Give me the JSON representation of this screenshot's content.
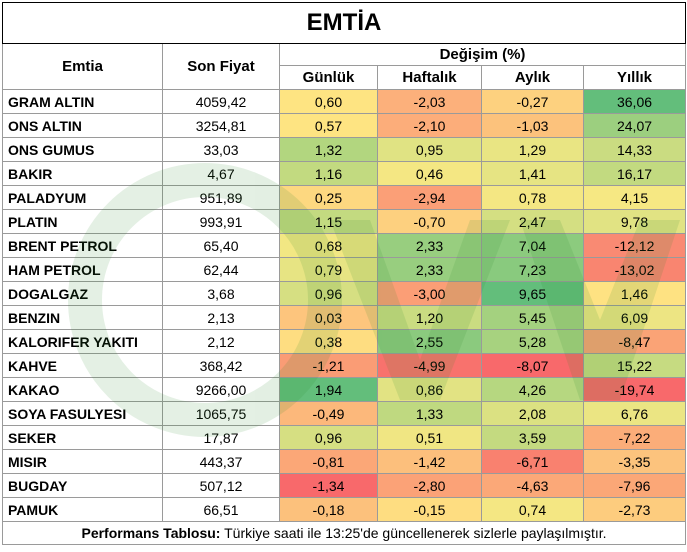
{
  "title": "EMTİA",
  "headers": {
    "commodity": "Emtia",
    "price": "Son Fiyat",
    "change_group": "Değişim (%)",
    "daily": "Günlük",
    "weekly": "Haftalık",
    "monthly": "Aylık",
    "yearly": "Yıllık"
  },
  "rows": [
    {
      "name": "GRAM ALTIN",
      "price": "4059,42",
      "changes": [
        "0,60",
        "-2,03",
        "-0,27",
        "36,06"
      ],
      "colors": [
        "#fee482",
        "#fcb07b",
        "#fdd17f",
        "#63be7b"
      ]
    },
    {
      "name": "ONS ALTIN",
      "price": "3254,81",
      "changes": [
        "0,57",
        "-2,10",
        "-1,03",
        "24,07"
      ],
      "colors": [
        "#fee482",
        "#fcad7a",
        "#fcc27c",
        "#9ccf7f"
      ]
    },
    {
      "name": "ONS GUMUS",
      "price": "33,03",
      "changes": [
        "1,32",
        "0,95",
        "1,29",
        "14,33"
      ],
      "colors": [
        "#b2d67f",
        "#e0e383",
        "#e9e583",
        "#cadc81"
      ]
    },
    {
      "name": "BAKIR",
      "price": "4,67",
      "changes": [
        "1,16",
        "0,46",
        "1,41",
        "16,17"
      ],
      "colors": [
        "#c2da80",
        "#f4e783",
        "#e6e483",
        "#c2da80"
      ]
    },
    {
      "name": "PALADYUM",
      "price": "951,89",
      "changes": [
        "0,25",
        "-2,94",
        "0,78",
        "4,15"
      ],
      "colors": [
        "#fdd880",
        "#fb9f77",
        "#f4e783",
        "#f6e883"
      ]
    },
    {
      "name": "PLATIN",
      "price": "993,91",
      "changes": [
        "1,15",
        "-0,70",
        "2,47",
        "9,78"
      ],
      "colors": [
        "#c3da80",
        "#fdd07f",
        "#d4df82",
        "#e1e383"
      ]
    },
    {
      "name": "BRENT PETROL",
      "price": "65,40",
      "changes": [
        "0,68",
        "2,33",
        "7,04",
        "-12,12"
      ],
      "colors": [
        "#f2e783",
        "#98ce7f",
        "#8ccb7e",
        "#f98a73"
      ]
    },
    {
      "name": "HAM PETROL",
      "price": "62,44",
      "changes": [
        "0,79",
        "2,33",
        "7,23",
        "-13,02"
      ],
      "colors": [
        "#e7e483",
        "#98ce7f",
        "#89ca7e",
        "#f98570"
      ]
    },
    {
      "name": "DOGALGAZ",
      "price": "3,68",
      "changes": [
        "0,96",
        "-3,00",
        "9,65",
        "1,46"
      ],
      "colors": [
        "#d6df82",
        "#fb9e76",
        "#63be7b",
        "#fee282"
      ]
    },
    {
      "name": "BENZIN",
      "price": "2,13",
      "changes": [
        "0,03",
        "1,20",
        "5,45",
        "6,09"
      ],
      "colors": [
        "#fdc57d",
        "#cadc81",
        "#a4d17f",
        "#ede583"
      ]
    },
    {
      "name": "KALORIFER YAKITI",
      "price": "2,12",
      "changes": [
        "0,38",
        "2,55",
        "5,28",
        "-8,47"
      ],
      "colors": [
        "#fedd81",
        "#8bca7e",
        "#a7d27f",
        "#faa376"
      ]
    },
    {
      "name": "KAHVE",
      "price": "368,42",
      "changes": [
        "-1,21",
        "-4,99",
        "-8,07",
        "15,22"
      ],
      "colors": [
        "#fa9c75",
        "#f8726d",
        "#f8696b",
        "#c6db81"
      ]
    },
    {
      "name": "KAKAO",
      "price": "9266,00",
      "changes": [
        "1,94",
        "0,86",
        "4,26",
        "-19,74"
      ],
      "colors": [
        "#63be7b",
        "#e2e383",
        "#b6d780",
        "#f8696b"
      ]
    },
    {
      "name": "SOYA FASULYESI",
      "price": "1065,75",
      "changes": [
        "-0,49",
        "1,33",
        "2,08",
        "6,76"
      ],
      "colors": [
        "#fcb87b",
        "#bfd980",
        "#dbe182",
        "#ebe583"
      ]
    },
    {
      "name": "SEKER",
      "price": "17,87",
      "changes": [
        "0,96",
        "0,51",
        "3,59",
        "-7,22"
      ],
      "colors": [
        "#d6df82",
        "#f0e683",
        "#c4da80",
        "#fbad79"
      ]
    },
    {
      "name": "MISIR",
      "price": "443,37",
      "changes": [
        "-0,81",
        "-1,42",
        "-6,71",
        "-3,35"
      ],
      "colors": [
        "#fba777",
        "#fcbf7c",
        "#f9816f",
        "#fcc37d"
      ]
    },
    {
      "name": "BUGDAY",
      "price": "507,12",
      "changes": [
        "-1,34",
        "-2,80",
        "-4,63",
        "-7,96"
      ],
      "colors": [
        "#f8696b",
        "#fba277",
        "#fba878",
        "#fba777"
      ]
    },
    {
      "name": "PAMUK",
      "price": "66,51",
      "changes": [
        "-0,18",
        "-0,15",
        "0,74",
        "-2,73"
      ],
      "colors": [
        "#fcc17c",
        "#fedd81",
        "#f4e783",
        "#fdcc7e"
      ]
    }
  ],
  "footer": {
    "label": "Performans Tablosu:",
    "text": " Türkiye saati ile 13:25'de güncellenerek sizlerle paylaşılmıştır."
  }
}
